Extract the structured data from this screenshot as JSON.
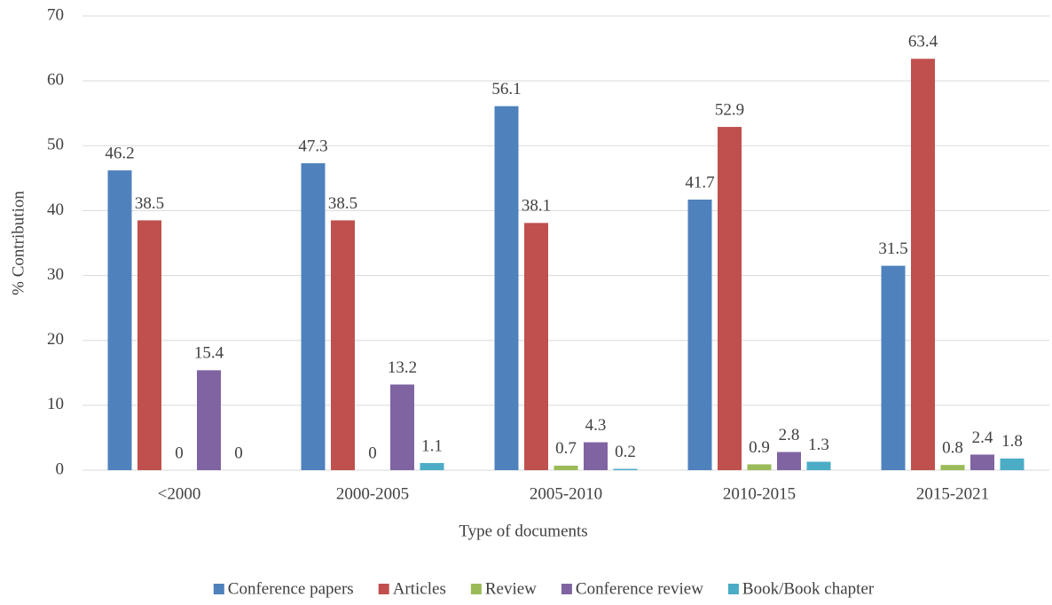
{
  "chart_data": {
    "type": "bar",
    "x_label": "Type of documents",
    "y_label": "% Contribution",
    "categories": [
      "<2000",
      "2000-2005",
      "2005-2010",
      "2010-2015",
      "2015-2021"
    ],
    "series": [
      {
        "name": "Conference papers",
        "color": "#4f81bd",
        "values": [
          46.2,
          47.3,
          56.1,
          41.7,
          31.5
        ]
      },
      {
        "name": "Articles",
        "color": "#c0504d",
        "values": [
          38.5,
          38.5,
          38.1,
          52.9,
          63.4
        ]
      },
      {
        "name": "Review",
        "color": "#9bbb59",
        "values": [
          0,
          0,
          0.7,
          0.9,
          0.8
        ]
      },
      {
        "name": "Conference review",
        "color": "#8064a2",
        "values": [
          15.4,
          13.2,
          4.3,
          2.8,
          2.4
        ]
      },
      {
        "name": "Book/Book chapter",
        "color": "#4bacc6",
        "values": [
          0,
          1.1,
          0.2,
          1.3,
          1.8
        ]
      }
    ],
    "ylim": [
      0,
      70
    ],
    "yticks": [
      0,
      10,
      20,
      30,
      40,
      50,
      60,
      70
    ],
    "grid": true,
    "legend": "bottom"
  }
}
